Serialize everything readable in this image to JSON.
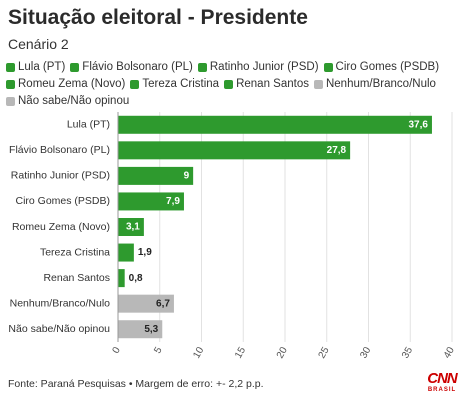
{
  "chart_data": {
    "type": "bar",
    "orientation": "horizontal",
    "title": "Situação eleitoral - Presidente",
    "subtitle": "Cenário 2",
    "categories": [
      "Lula (PT)",
      "Flávio Bolsonaro (PL)",
      "Ratinho Junior (PSD)",
      "Ciro Gomes (PSDB)",
      "Romeu Zema (Novo)",
      "Tereza Cristina",
      "Renan Santos",
      "Nenhum/Branco/Nulo",
      "Não sabe/Não opinou"
    ],
    "values": [
      37.6,
      27.8,
      9,
      7.9,
      3.1,
      1.9,
      0.8,
      6.7,
      5.3
    ],
    "value_labels": [
      "37,6",
      "27,8",
      "9",
      "7,9",
      "3,1",
      "1,9",
      "0,8",
      "6,7",
      "5,3"
    ],
    "colors": [
      "#2e9a2e",
      "#2e9a2e",
      "#2e9a2e",
      "#2e9a2e",
      "#2e9a2e",
      "#2e9a2e",
      "#2e9a2e",
      "#b8b8b8",
      "#b8b8b8"
    ],
    "xlim": [
      0,
      40
    ],
    "xticks": [
      0,
      5,
      10,
      15,
      20,
      25,
      30,
      35,
      40
    ],
    "grid": true,
    "legend": [
      {
        "label": "Lula (PT)",
        "color": "#2e9a2e"
      },
      {
        "label": "Flávio Bolsonaro (PL)",
        "color": "#2e9a2e"
      },
      {
        "label": "Ratinho Junior (PSD)",
        "color": "#2e9a2e"
      },
      {
        "label": "Ciro Gomes (PSDB)",
        "color": "#2e9a2e"
      },
      {
        "label": "Romeu Zema (Novo)",
        "color": "#2e9a2e"
      },
      {
        "label": "Tereza Cristina",
        "color": "#2e9a2e"
      },
      {
        "label": "Renan Santos",
        "color": "#2e9a2e"
      },
      {
        "label": "Nenhum/Branco/Nulo",
        "color": "#b8b8b8"
      },
      {
        "label": "Não sabe/Não opinou",
        "color": "#b8b8b8"
      }
    ],
    "legend_position": "top-left"
  },
  "source": "Fonte: Paraná Pesquisas • Margem de erro: +- 2,2 p.p.",
  "logo": {
    "name": "CNN",
    "sub": "BRASIL",
    "color": "#cc0000"
  }
}
